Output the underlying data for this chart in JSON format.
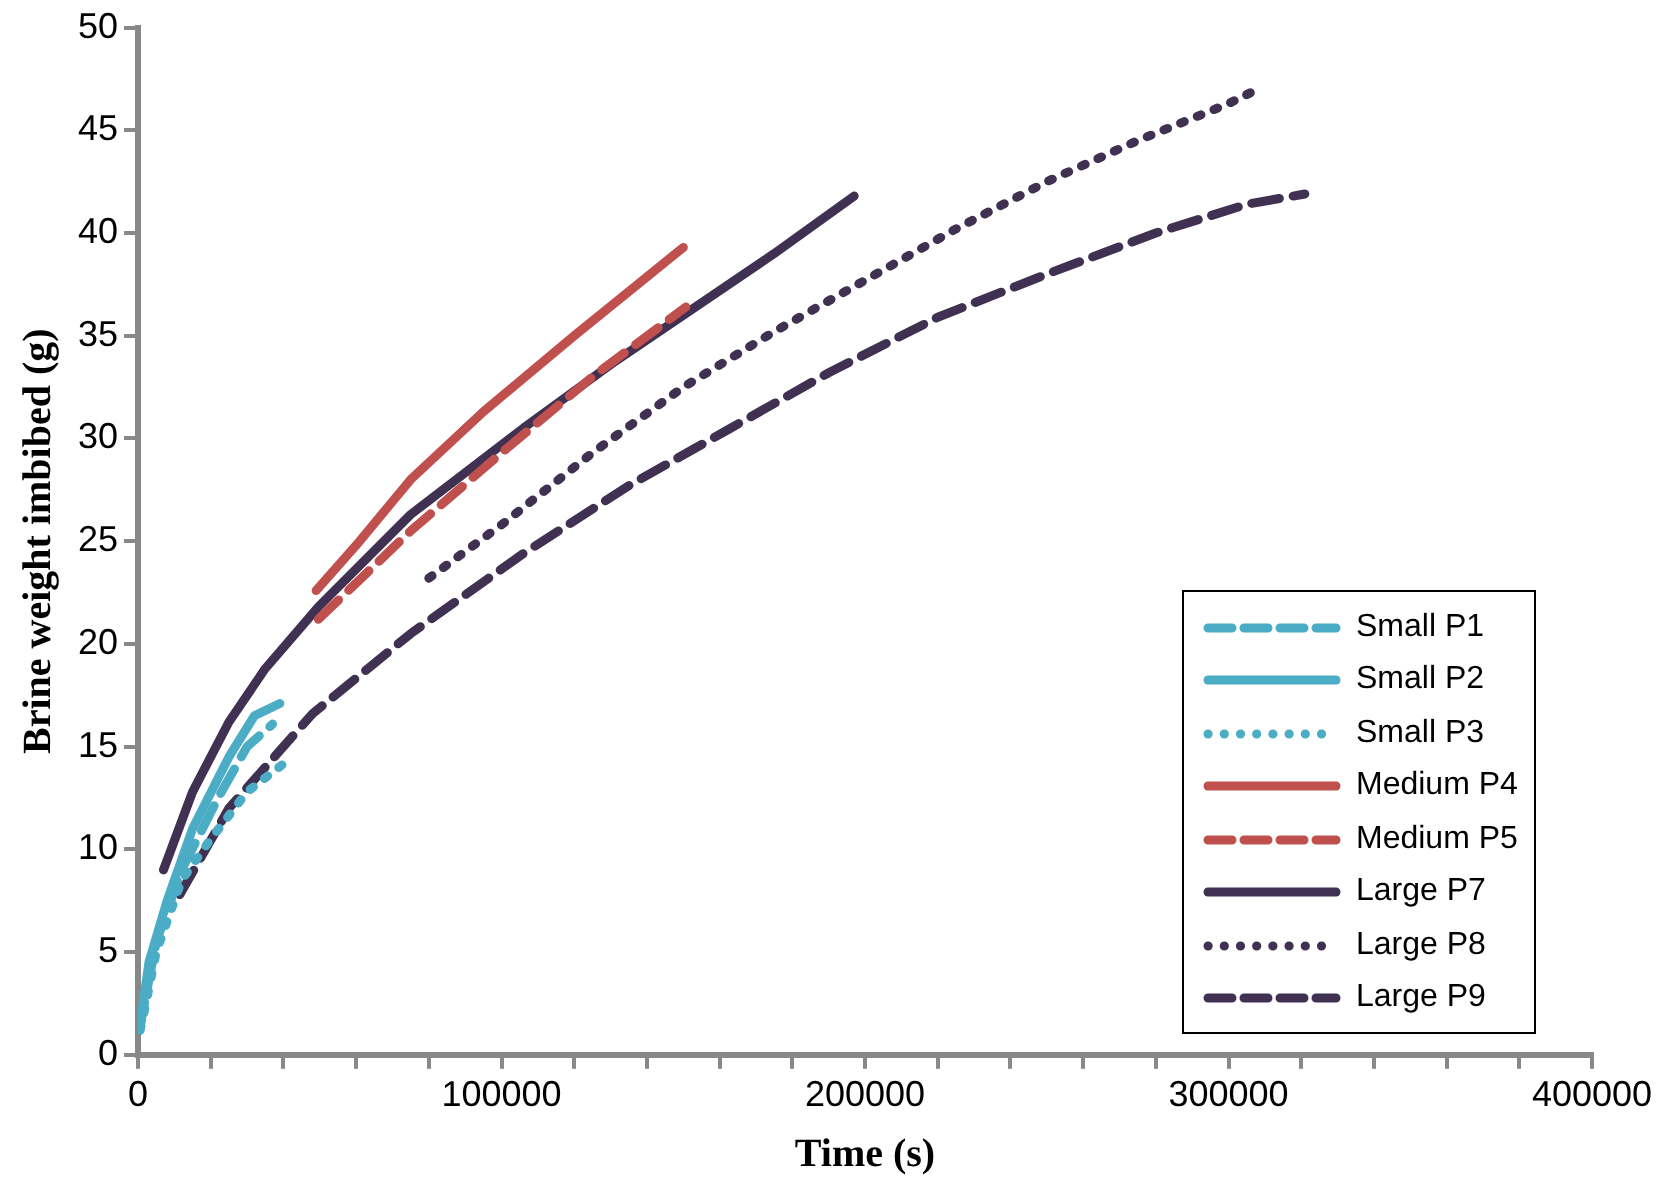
{
  "chart_data": {
    "type": "line",
    "xlabel": "Time (s)",
    "ylabel": "Brine weight imbibed (g)",
    "xlim": [
      0,
      400000
    ],
    "xticks": [
      0,
      {
        "value": 20000,
        "label": null
      },
      {
        "value": 40000,
        "label": null
      },
      {
        "value": 60000,
        "label": null
      },
      {
        "value": 80000,
        "label": null
      },
      100000,
      {
        "value": 120000,
        "label": null
      },
      {
        "value": 140000,
        "label": null
      },
      {
        "value": 160000,
        "label": null
      },
      {
        "value": 180000,
        "label": null
      },
      200000,
      {
        "value": 220000,
        "label": null
      },
      {
        "value": 240000,
        "label": null
      },
      {
        "value": 260000,
        "label": null
      },
      {
        "value": 280000,
        "label": null
      },
      300000,
      {
        "value": 320000,
        "label": null
      },
      {
        "value": 340000,
        "label": null
      },
      {
        "value": 360000,
        "label": null
      },
      {
        "value": 380000,
        "label": null
      },
      400000
    ],
    "ylim": [
      0,
      50
    ],
    "yticks": [
      0,
      5,
      10,
      15,
      20,
      25,
      30,
      35,
      40,
      45,
      50
    ],
    "grid": false,
    "legend": "bottom right",
    "marker": "none",
    "series": [
      {
        "name": "Small P1",
        "color": "#4bacc6",
        "line_style": "dashed",
        "x": [
          500,
          1000,
          5000,
          12000,
          22000,
          30000,
          37000
        ],
        "values": [
          1.2,
          1.8,
          5.5,
          9,
          12.5,
          15,
          16.1
        ]
      },
      {
        "name": "Small P2",
        "color": "#4bacc6",
        "line_style": "solid",
        "x": [
          500,
          1000,
          3000,
          8000,
          15000,
          25000,
          32000,
          39000
        ],
        "values": [
          1.2,
          2,
          4.5,
          7.5,
          11,
          14.5,
          16.5,
          17.1
        ]
      },
      {
        "name": "Small P3",
        "color": "#4bacc6",
        "line_style": "dotted",
        "x": [
          500,
          1000,
          5000,
          12000,
          20000,
          30000,
          41000
        ],
        "values": [
          1.2,
          1.5,
          5,
          8.5,
          10.5,
          12.8,
          14.3
        ]
      },
      {
        "name": "Medium P4",
        "color": "#c0504d",
        "line_style": "solid",
        "x": [
          49000,
          60000,
          75000,
          95000,
          120000,
          150000
        ],
        "values": [
          22.6,
          24.8,
          28,
          31.3,
          35,
          39.3
        ]
      },
      {
        "name": "Medium P5",
        "color": "#c0504d",
        "line_style": "dashed",
        "x": [
          49600,
          75000,
          100000,
          125000,
          150700
        ],
        "values": [
          21.2,
          25.5,
          29.3,
          33,
          36.4
        ]
      },
      {
        "name": "Large P7",
        "color": "#403152",
        "line_style": "solid",
        "x": [
          7000,
          15000,
          25000,
          35000,
          49600,
          75000,
          106000,
          130000,
          150000,
          175000,
          197000
        ],
        "values": [
          9,
          12.8,
          16.2,
          18.8,
          21.8,
          26.3,
          30.5,
          33.6,
          36,
          39,
          41.8
        ]
      },
      {
        "name": "Large P8",
        "color": "#403152",
        "line_style": "dotted",
        "x": [
          80000,
          100000,
          125000,
          150000,
          175000,
          200000,
          225000,
          250000,
          275000,
          300000,
          308000
        ],
        "values": [
          23.2,
          25.8,
          29.3,
          32.5,
          35.2,
          37.7,
          40.2,
          42.5,
          44.5,
          46.3,
          47
        ]
      },
      {
        "name": "Large P9",
        "color": "#403152",
        "line_style": "dashed",
        "x": [
          11500,
          25000,
          48000,
          75000,
          106000,
          135000,
          163000,
          190000,
          220000,
          250000,
          280000,
          305000,
          321000
        ],
        "values": [
          7.8,
          12,
          16.6,
          20.5,
          24.4,
          27.7,
          30.5,
          33.2,
          35.9,
          38,
          40,
          41.4,
          41.9
        ]
      }
    ]
  }
}
